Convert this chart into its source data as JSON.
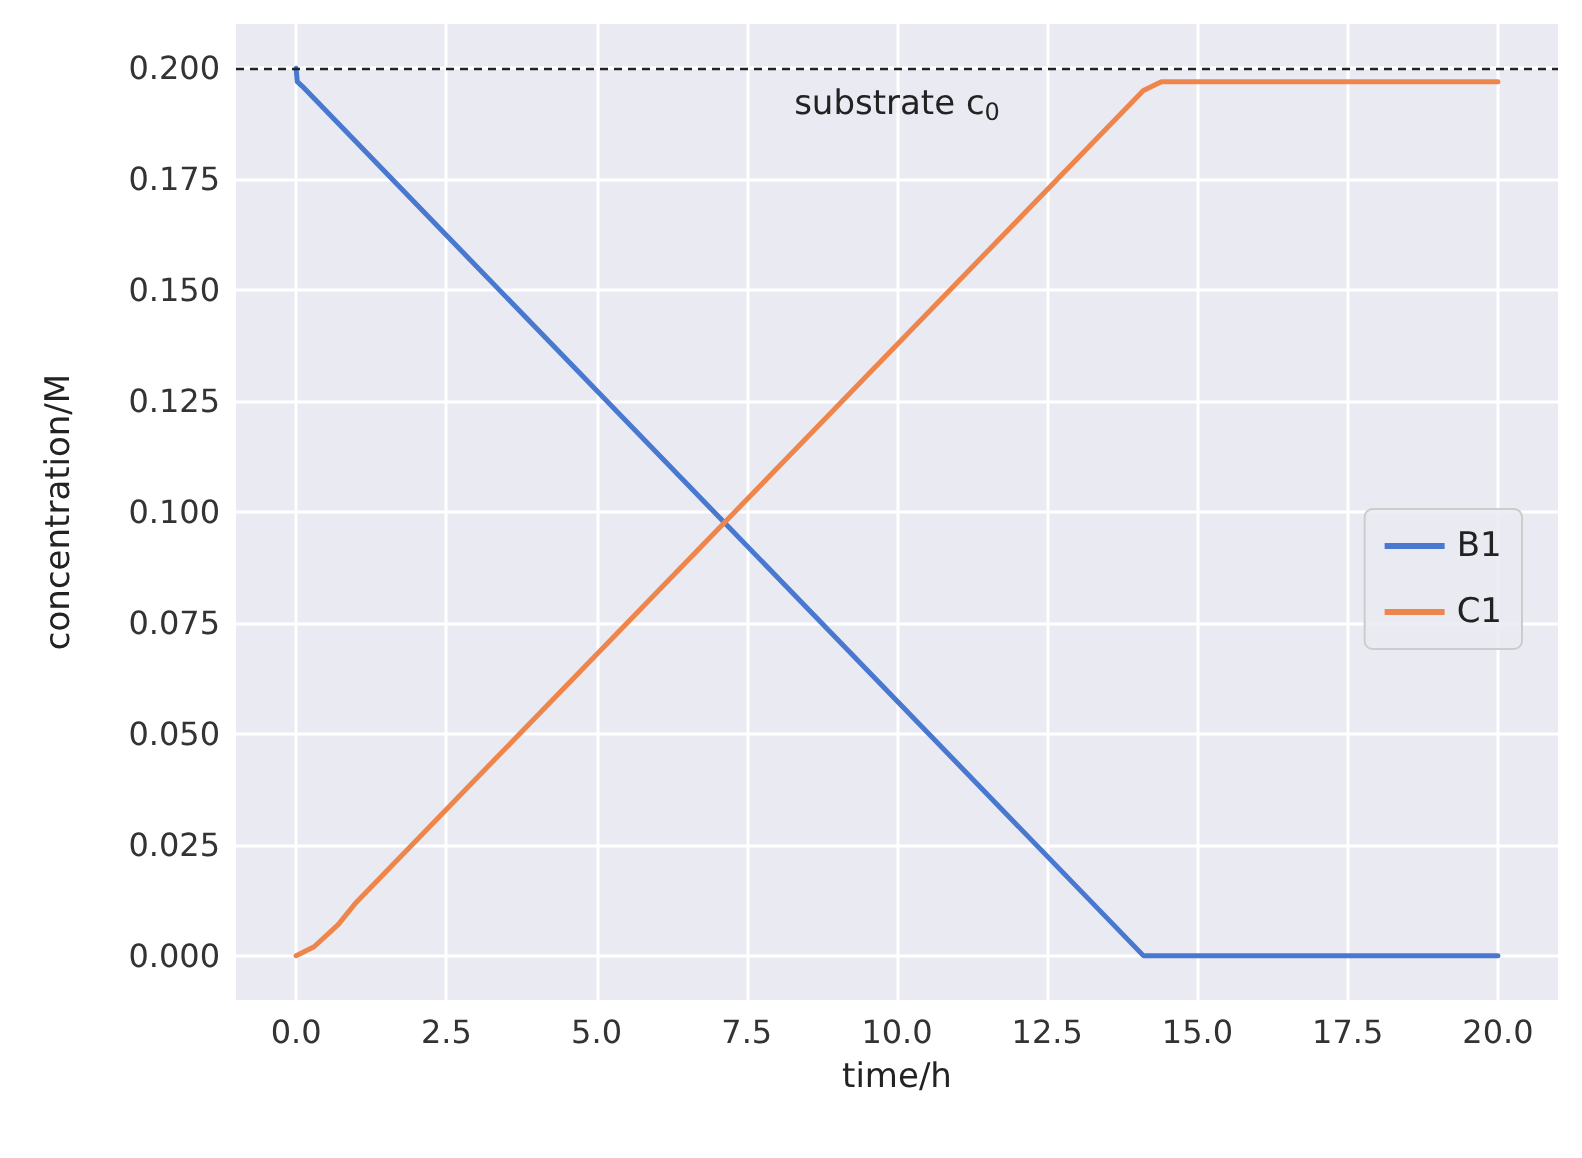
{
  "chart_data": {
    "type": "line",
    "xlabel": "time/h",
    "ylabel": "concentration/M",
    "x": [
      0,
      0.02,
      0.1,
      14.1,
      20
    ],
    "series": [
      {
        "name": "B1",
        "color": "#4878d0",
        "values": [
          0.2,
          0.197,
          0.196,
          0,
          0
        ]
      },
      {
        "name": "C1",
        "color": "#ee854a",
        "x": [
          0,
          0.3,
          0.7,
          1,
          14.1,
          14.4,
          20
        ],
        "values": [
          0,
          0.002,
          0.007,
          0.012,
          0.195,
          0.197,
          0.197
        ]
      }
    ],
    "xlim": [
      -1,
      21
    ],
    "ylim": [
      -0.01,
      0.21
    ],
    "xticks": [
      {
        "value": 0,
        "label": "0.0"
      },
      {
        "value": 2.5,
        "label": "2.5"
      },
      {
        "value": 5,
        "label": "5.0"
      },
      {
        "value": 7.5,
        "label": "7.5"
      },
      {
        "value": 10,
        "label": "10.0"
      },
      {
        "value": 12.5,
        "label": "12.5"
      },
      {
        "value": 15,
        "label": "15.0"
      },
      {
        "value": 17.5,
        "label": "17.5"
      },
      {
        "value": 20,
        "label": "20.0"
      }
    ],
    "yticks": [
      {
        "value": 0,
        "label": "0.000"
      },
      {
        "value": 0.025,
        "label": "0.025"
      },
      {
        "value": 0.05,
        "label": "0.050"
      },
      {
        "value": 0.075,
        "label": "0.075"
      },
      {
        "value": 0.1,
        "label": "0.100"
      },
      {
        "value": 0.125,
        "label": "0.125"
      },
      {
        "value": 0.15,
        "label": "0.150"
      },
      {
        "value": 0.175,
        "label": "0.175"
      },
      {
        "value": 0.2,
        "label": "0.200"
      }
    ],
    "ref_lines": [
      {
        "axis": "y",
        "value": 0.2,
        "label": "substrate c$_{0}$",
        "color": "#222222",
        "line_style": "dashed"
      }
    ],
    "grid": true,
    "legend": "right"
  }
}
